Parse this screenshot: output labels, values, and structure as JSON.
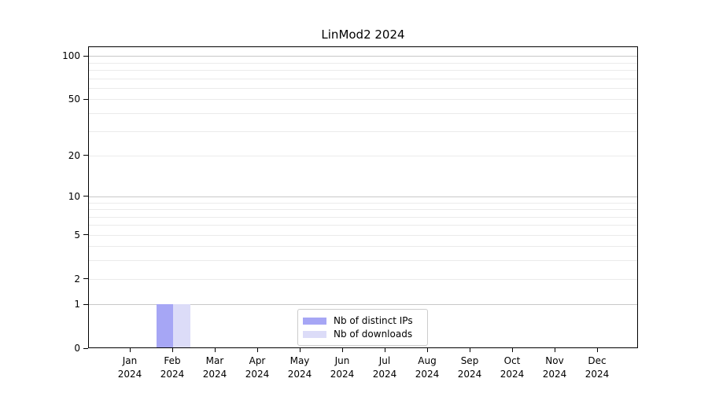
{
  "title": "LinMod2 2024",
  "chart_data": {
    "type": "bar",
    "title": "LinMod2 2024",
    "categories": [
      "Jan 2024",
      "Feb 2024",
      "Mar 2024",
      "Apr 2024",
      "May 2024",
      "Jun 2024",
      "Jul 2024",
      "Aug 2024",
      "Sep 2024",
      "Oct 2024",
      "Nov 2024",
      "Dec 2024"
    ],
    "x_months": [
      "Jan",
      "Feb",
      "Mar",
      "Apr",
      "May",
      "Jun",
      "Jul",
      "Aug",
      "Sep",
      "Oct",
      "Nov",
      "Dec"
    ],
    "x_year": "2024",
    "series": [
      {
        "name": "Nb of distinct IPs",
        "color": "#a6a6f5",
        "values": [
          0,
          1,
          0,
          0,
          0,
          0,
          0,
          0,
          0,
          0,
          0,
          0
        ]
      },
      {
        "name": "Nb of downloads",
        "color": "#dcdcf8",
        "values": [
          0,
          1,
          0,
          0,
          0,
          0,
          0,
          0,
          0,
          0,
          0,
          0
        ]
      }
    ],
    "xlabel": "",
    "ylabel": "",
    "yscale": "log1p",
    "yticks": [
      0,
      1,
      2,
      5,
      10,
      20,
      50,
      100
    ],
    "minor_yticks": [
      3,
      4,
      6,
      7,
      8,
      9,
      30,
      40,
      60,
      70,
      80,
      90
    ],
    "major_grid_values": [
      1,
      10,
      100
    ],
    "ylim": [
      0,
      116
    ],
    "grid": true,
    "legend_position": "lower center"
  },
  "colors": {
    "bar_distinct_ips": "#a6a6f5",
    "bar_downloads": "#dcdcf8",
    "grid_major": "#c8c8c8",
    "grid_minor": "#ebebeb",
    "axis": "#000000",
    "legend_border": "#cccccc",
    "background": "#ffffff"
  }
}
